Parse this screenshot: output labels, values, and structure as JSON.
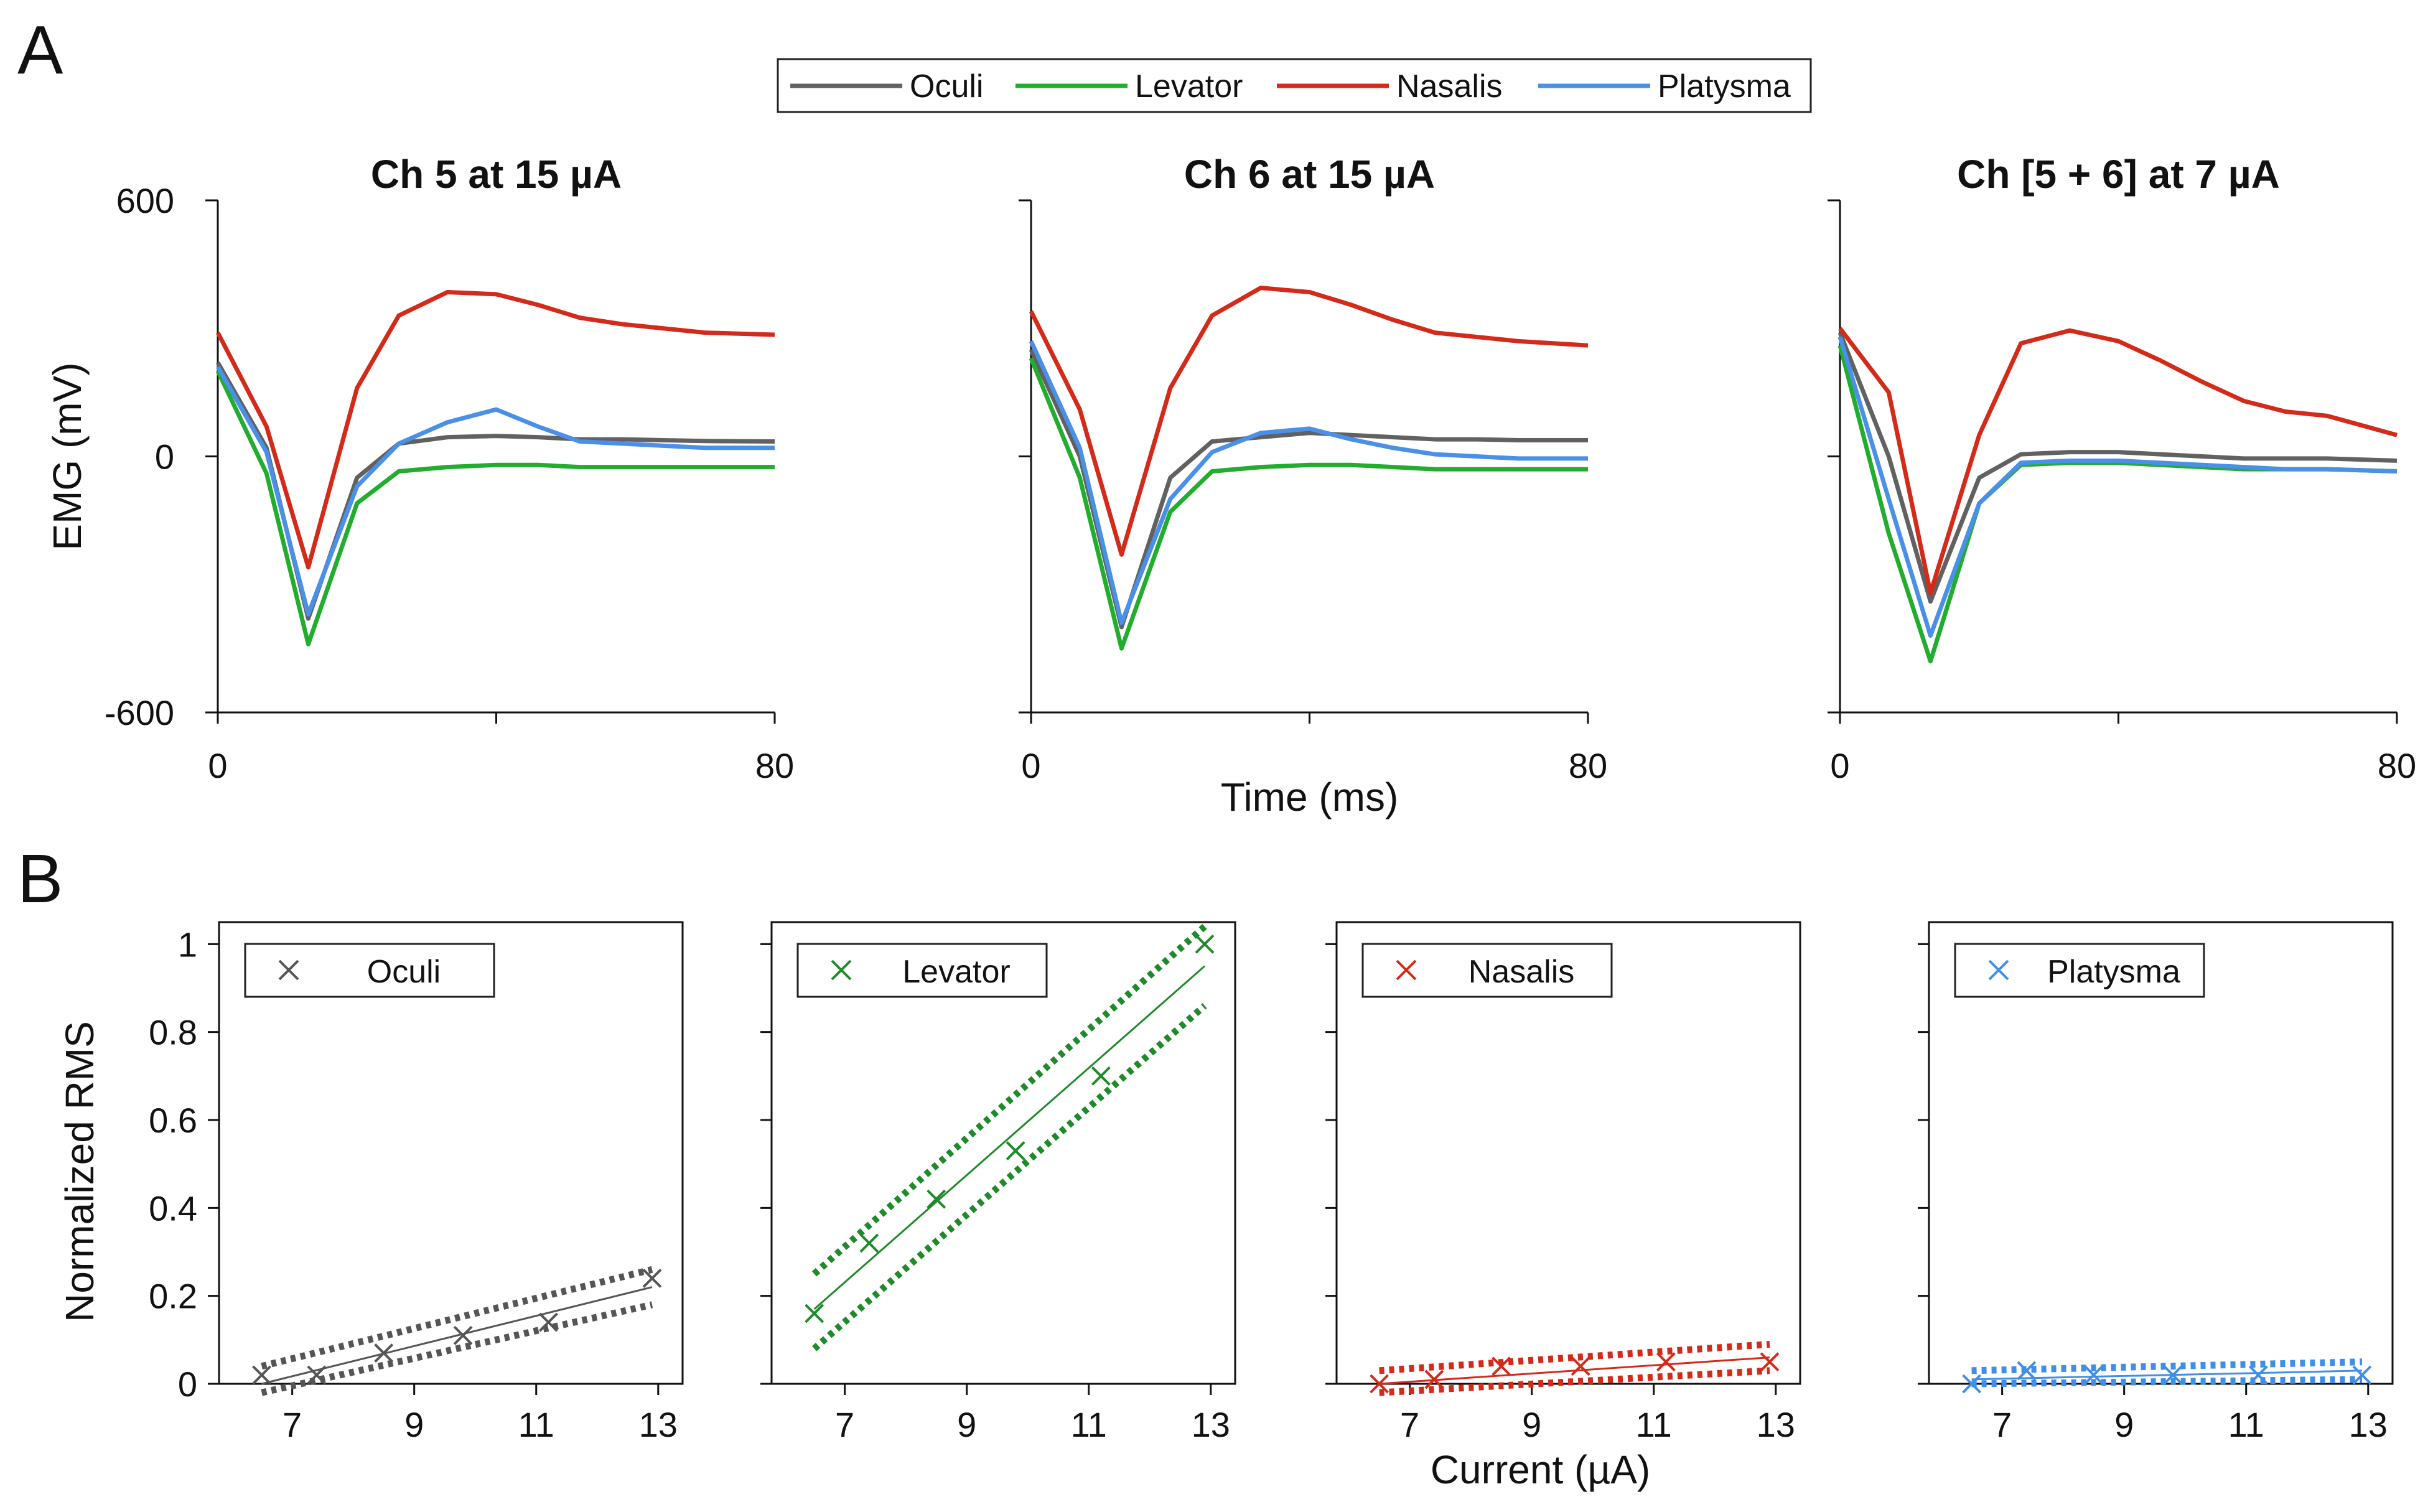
{
  "panel_labels": [
    "A",
    "B"
  ],
  "chart_data": [
    {
      "type": "line",
      "panel": "A",
      "title": "Ch 5 at 15 µA",
      "xlabel": "",
      "ylabel": "EMG (mV)",
      "xlim": [
        0,
        80
      ],
      "ylim": [
        -600,
        600
      ],
      "xticks": [
        0,
        80
      ],
      "yticks": [
        -600,
        0,
        600
      ],
      "x": [
        0,
        7,
        13,
        20,
        26,
        33,
        40,
        46,
        52,
        58,
        64,
        70,
        80
      ],
      "series": [
        {
          "name": "Oculi",
          "color": "#616161",
          "values": [
            220,
            20,
            -380,
            -50,
            30,
            45,
            48,
            45,
            40,
            40,
            38,
            36,
            35
          ]
        },
        {
          "name": "Levator",
          "color": "#22ad2f",
          "values": [
            200,
            -40,
            -440,
            -110,
            -35,
            -25,
            -20,
            -20,
            -25,
            -25,
            -25,
            -25,
            -25
          ]
        },
        {
          "name": "Nasalis",
          "color": "#d42a1a",
          "values": [
            290,
            70,
            -260,
            160,
            330,
            385,
            380,
            355,
            325,
            310,
            300,
            290,
            285
          ]
        },
        {
          "name": "Platysma",
          "color": "#4a90e8",
          "values": [
            210,
            10,
            -370,
            -70,
            30,
            80,
            110,
            70,
            35,
            30,
            25,
            20,
            20
          ]
        }
      ]
    },
    {
      "type": "line",
      "panel": "A",
      "title": "Ch 6 at 15 µA",
      "xlabel": "Time (ms)",
      "ylabel": "",
      "xlim": [
        0,
        80
      ],
      "ylim": [
        -600,
        600
      ],
      "xticks": [
        0,
        80
      ],
      "yticks": [
        -600,
        0,
        600
      ],
      "x": [
        0,
        7,
        13,
        20,
        26,
        33,
        40,
        46,
        52,
        58,
        64,
        70,
        80
      ],
      "series": [
        {
          "name": "Oculi",
          "color": "#616161",
          "values": [
            250,
            0,
            -400,
            -50,
            35,
            45,
            55,
            50,
            45,
            40,
            40,
            38,
            38
          ]
        },
        {
          "name": "Levator",
          "color": "#22ad2f",
          "values": [
            230,
            -50,
            -450,
            -130,
            -35,
            -25,
            -20,
            -20,
            -25,
            -30,
            -30,
            -30,
            -30
          ]
        },
        {
          "name": "Nasalis",
          "color": "#d42a1a",
          "values": [
            340,
            110,
            -230,
            160,
            330,
            395,
            385,
            355,
            320,
            290,
            280,
            270,
            260
          ]
        },
        {
          "name": "Platysma",
          "color": "#4a90e8",
          "values": [
            270,
            20,
            -390,
            -100,
            10,
            55,
            65,
            40,
            20,
            5,
            0,
            -5,
            -5
          ]
        }
      ]
    },
    {
      "type": "line",
      "panel": "A",
      "title": "Ch [5 + 6] at 7 µA",
      "xlabel": "",
      "ylabel": "",
      "xlim": [
        0,
        80
      ],
      "ylim": [
        -600,
        600
      ],
      "xticks": [
        0,
        80
      ],
      "yticks": [
        -600,
        0,
        600
      ],
      "x": [
        0,
        7,
        13,
        20,
        26,
        33,
        40,
        46,
        52,
        58,
        64,
        70,
        80
      ],
      "series": [
        {
          "name": "Oculi",
          "color": "#616161",
          "values": [
            290,
            0,
            -340,
            -50,
            5,
            10,
            10,
            5,
            0,
            -5,
            -5,
            -5,
            -10
          ]
        },
        {
          "name": "Levator",
          "color": "#22ad2f",
          "values": [
            260,
            -180,
            -480,
            -110,
            -20,
            -15,
            -15,
            -20,
            -25,
            -30,
            -30,
            -30,
            -35
          ]
        },
        {
          "name": "Nasalis",
          "color": "#d42a1a",
          "values": [
            300,
            150,
            -320,
            50,
            265,
            295,
            270,
            225,
            175,
            130,
            105,
            95,
            50
          ]
        },
        {
          "name": "Platysma",
          "color": "#4a90e8",
          "values": [
            280,
            -100,
            -420,
            -110,
            -15,
            -10,
            -10,
            -15,
            -20,
            -25,
            -30,
            -30,
            -35
          ]
        }
      ]
    },
    {
      "type": "scatter",
      "panel": "B",
      "legend": "Oculi",
      "color": "#555555",
      "xlabel": "",
      "ylabel": "Normalized RMS",
      "xlim": [
        5.8,
        13.4
      ],
      "ylim": [
        0,
        1.05
      ],
      "xticks": [
        7,
        9,
        11,
        13
      ],
      "yticks": [
        0,
        0.2,
        0.4,
        0.6,
        0.8,
        1
      ],
      "x": [
        6.5,
        7.4,
        8.5,
        9.8,
        11.2,
        12.9
      ],
      "y": [
        0.02,
        0.02,
        0.07,
        0.11,
        0.14,
        0.24
      ],
      "fit": {
        "x": [
          6.5,
          12.9
        ],
        "y": [
          0.0,
          0.22
        ]
      },
      "ci_upper": {
        "x": [
          6.5,
          12.9
        ],
        "y": [
          0.04,
          0.26
        ]
      },
      "ci_lower": {
        "x": [
          6.5,
          12.9
        ],
        "y": [
          -0.02,
          0.18
        ]
      }
    },
    {
      "type": "scatter",
      "panel": "B",
      "legend": "Levator",
      "color": "#1e8a2a",
      "xlabel": "",
      "ylabel": "",
      "xlim": [
        5.8,
        13.4
      ],
      "ylim": [
        0,
        1.05
      ],
      "xticks": [
        7,
        9,
        11,
        13
      ],
      "yticks": [
        0,
        0.2,
        0.4,
        0.6,
        0.8,
        1
      ],
      "x": [
        6.5,
        7.4,
        8.5,
        9.8,
        11.2,
        12.9
      ],
      "y": [
        0.16,
        0.32,
        0.42,
        0.53,
        0.7,
        1.0
      ],
      "fit": {
        "x": [
          6.5,
          12.9
        ],
        "y": [
          0.17,
          0.95
        ]
      },
      "ci_upper": {
        "x": [
          6.5,
          12.9
        ],
        "y": [
          0.25,
          1.04
        ]
      },
      "ci_lower": {
        "x": [
          6.5,
          12.9
        ],
        "y": [
          0.08,
          0.86
        ]
      }
    },
    {
      "type": "scatter",
      "panel": "B",
      "legend": "Nasalis",
      "color": "#d42a1a",
      "xlabel": "Current (µA)",
      "ylabel": "",
      "xlim": [
        5.8,
        13.4
      ],
      "ylim": [
        0,
        1.05
      ],
      "xticks": [
        7,
        9,
        11,
        13
      ],
      "yticks": [
        0,
        0.2,
        0.4,
        0.6,
        0.8,
        1
      ],
      "x": [
        6.5,
        7.4,
        8.5,
        9.8,
        11.2,
        12.9
      ],
      "y": [
        0.0,
        0.01,
        0.04,
        0.04,
        0.05,
        0.05
      ],
      "fit": {
        "x": [
          6.5,
          12.9
        ],
        "y": [
          0.0,
          0.06
        ]
      },
      "ci_upper": {
        "x": [
          6.5,
          12.9
        ],
        "y": [
          0.03,
          0.09
        ]
      },
      "ci_lower": {
        "x": [
          6.5,
          12.9
        ],
        "y": [
          -0.02,
          0.03
        ]
      }
    },
    {
      "type": "scatter",
      "panel": "B",
      "legend": "Platysma",
      "color": "#3f8fe8",
      "xlabel": "",
      "ylabel": "",
      "xlim": [
        5.8,
        13.4
      ],
      "ylim": [
        0,
        1.05
      ],
      "xticks": [
        7,
        9,
        11,
        13
      ],
      "yticks": [
        0,
        0.2,
        0.4,
        0.6,
        0.8,
        1
      ],
      "x": [
        6.5,
        7.4,
        8.5,
        9.8,
        11.2,
        12.9
      ],
      "y": [
        0.0,
        0.03,
        0.02,
        0.02,
        0.02,
        0.02
      ],
      "fit": {
        "x": [
          6.5,
          12.9
        ],
        "y": [
          0.01,
          0.03
        ]
      },
      "ci_upper": {
        "x": [
          6.5,
          12.9
        ],
        "y": [
          0.03,
          0.05
        ]
      },
      "ci_lower": {
        "x": [
          6.5,
          12.9
        ],
        "y": [
          0.0,
          0.01
        ]
      }
    }
  ]
}
